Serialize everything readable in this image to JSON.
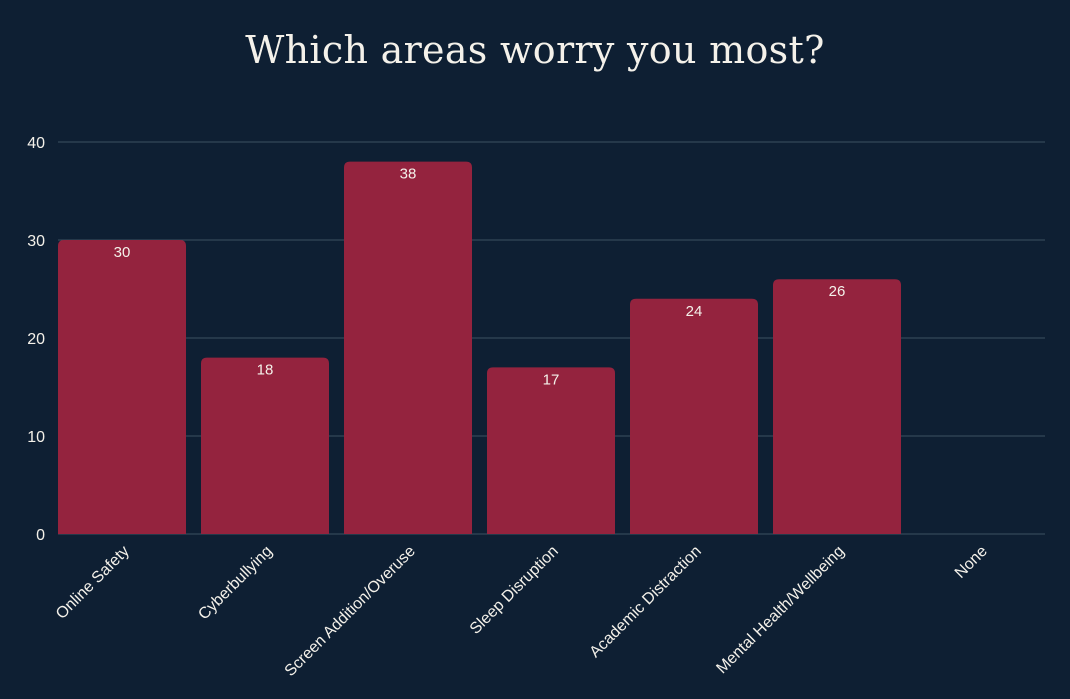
{
  "chart_data": {
    "type": "bar",
    "title": "Which areas worry you most?",
    "categories": [
      "Online Safety",
      "Cyberbullying",
      "Screen Addition/Overuse",
      "Sleep Disruption",
      "Academic Distraction",
      "Mental Health/Wellbeing",
      "None"
    ],
    "values": [
      30,
      18,
      38,
      17,
      24,
      26,
      0
    ],
    "data_labels": [
      "30",
      "18",
      "38",
      "17",
      "24",
      "26",
      ""
    ],
    "xlabel": "",
    "ylabel": "",
    "ylim": [
      0,
      40
    ],
    "yticks": [
      0,
      10,
      20,
      30,
      40
    ],
    "grid": true,
    "legend": "none",
    "colors": {
      "background": "#0e1f33",
      "bar": "#94233e",
      "grid": "#3c5060",
      "text": "#f4f1ea"
    }
  }
}
